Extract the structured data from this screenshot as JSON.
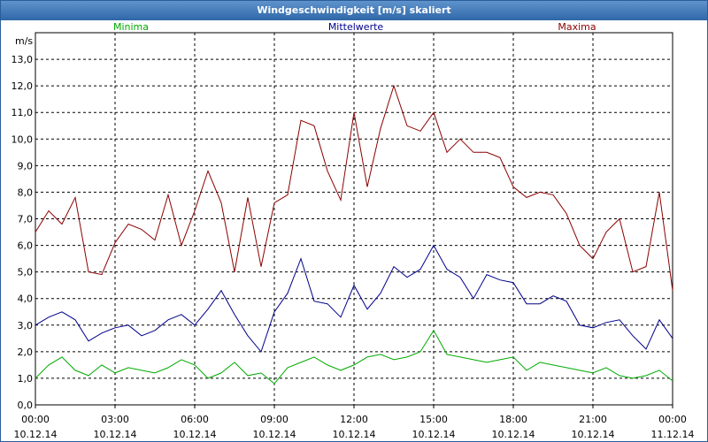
{
  "window": {
    "title": "Windgeschwindigkeit [m/s] skaliert"
  },
  "chart_data": {
    "type": "line",
    "title": "Windgeschwindigkeit [m/s] skaliert",
    "ylabel": "m/s",
    "xlabel": "",
    "ylim": [
      0,
      14
    ],
    "xlim": [
      0,
      24
    ],
    "y_ticks": [
      "0,0",
      "1,0",
      "2,0",
      "3,0",
      "4,0",
      "5,0",
      "6,0",
      "7,0",
      "8,0",
      "9,0",
      "10,0",
      "11,0",
      "12,0",
      "13,0"
    ],
    "x_ticks": [
      {
        "time": "00:00",
        "date": "10.12.14"
      },
      {
        "time": "03:00",
        "date": "10.12.14"
      },
      {
        "time": "06:00",
        "date": "10.12.14"
      },
      {
        "time": "09:00",
        "date": "10.12.14"
      },
      {
        "time": "12:00",
        "date": "10.12.14"
      },
      {
        "time": "15:00",
        "date": "10.12.14"
      },
      {
        "time": "18:00",
        "date": "10.12.14"
      },
      {
        "time": "21:00",
        "date": "10.12.14"
      },
      {
        "time": "00:00",
        "date": "11.12.14"
      }
    ],
    "grid": true,
    "legend": "top",
    "x_hours": [
      0,
      0.5,
      1,
      1.5,
      2,
      2.5,
      3,
      3.5,
      4,
      4.5,
      5,
      5.5,
      6,
      6.5,
      7,
      7.5,
      8,
      8.5,
      9,
      9.5,
      10,
      10.5,
      11,
      11.5,
      12,
      12.5,
      13,
      13.5,
      14,
      14.5,
      15,
      15.5,
      16,
      16.5,
      17,
      17.5,
      18,
      18.5,
      19,
      19.5,
      20,
      20.5,
      21,
      21.5,
      22,
      22.5,
      23,
      23.5,
      24
    ],
    "series": [
      {
        "name": "Minima",
        "color": "#00aa00",
        "values": [
          1.0,
          1.5,
          1.8,
          1.3,
          1.1,
          1.5,
          1.2,
          1.4,
          1.3,
          1.2,
          1.4,
          1.7,
          1.5,
          1.0,
          1.2,
          1.6,
          1.1,
          1.2,
          0.8,
          1.4,
          1.6,
          1.8,
          1.5,
          1.3,
          1.5,
          1.8,
          1.9,
          1.7,
          1.8,
          2.0,
          2.8,
          1.9,
          1.8,
          1.7,
          1.6,
          1.7,
          1.8,
          1.3,
          1.6,
          1.5,
          1.4,
          1.3,
          1.2,
          1.4,
          1.1,
          1.0,
          1.1,
          1.3,
          0.9
        ]
      },
      {
        "name": "Mittelwerte",
        "color": "#00008b",
        "values": [
          3.0,
          3.3,
          3.5,
          3.2,
          2.4,
          2.7,
          2.9,
          3.0,
          2.6,
          2.8,
          3.2,
          3.4,
          3.0,
          3.6,
          4.3,
          3.4,
          2.6,
          2.0,
          3.5,
          4.2,
          5.5,
          3.9,
          3.8,
          3.3,
          4.5,
          3.6,
          4.2,
          5.2,
          4.8,
          5.1,
          6.0,
          5.1,
          4.8,
          4.0,
          4.9,
          4.7,
          4.6,
          3.8,
          3.8,
          4.1,
          3.9,
          3.0,
          2.9,
          3.1,
          3.2,
          2.6,
          2.1,
          3.2,
          2.5
        ]
      },
      {
        "name": "Maxima",
        "color": "#8b0000",
        "values": [
          6.5,
          7.3,
          6.8,
          7.8,
          5.0,
          4.9,
          6.1,
          6.8,
          6.6,
          6.2,
          7.9,
          6.0,
          7.3,
          8.8,
          7.6,
          5.0,
          7.8,
          5.2,
          7.6,
          7.9,
          10.7,
          10.5,
          8.8,
          7.7,
          11.0,
          8.2,
          10.4,
          12.0,
          10.5,
          10.3,
          11.0,
          9.5,
          10.0,
          9.5,
          9.5,
          9.3,
          8.2,
          7.8,
          8.0,
          7.9,
          7.2,
          6.0,
          5.5,
          6.5,
          7.0,
          5.0,
          5.2,
          8.0,
          4.3
        ]
      }
    ]
  }
}
